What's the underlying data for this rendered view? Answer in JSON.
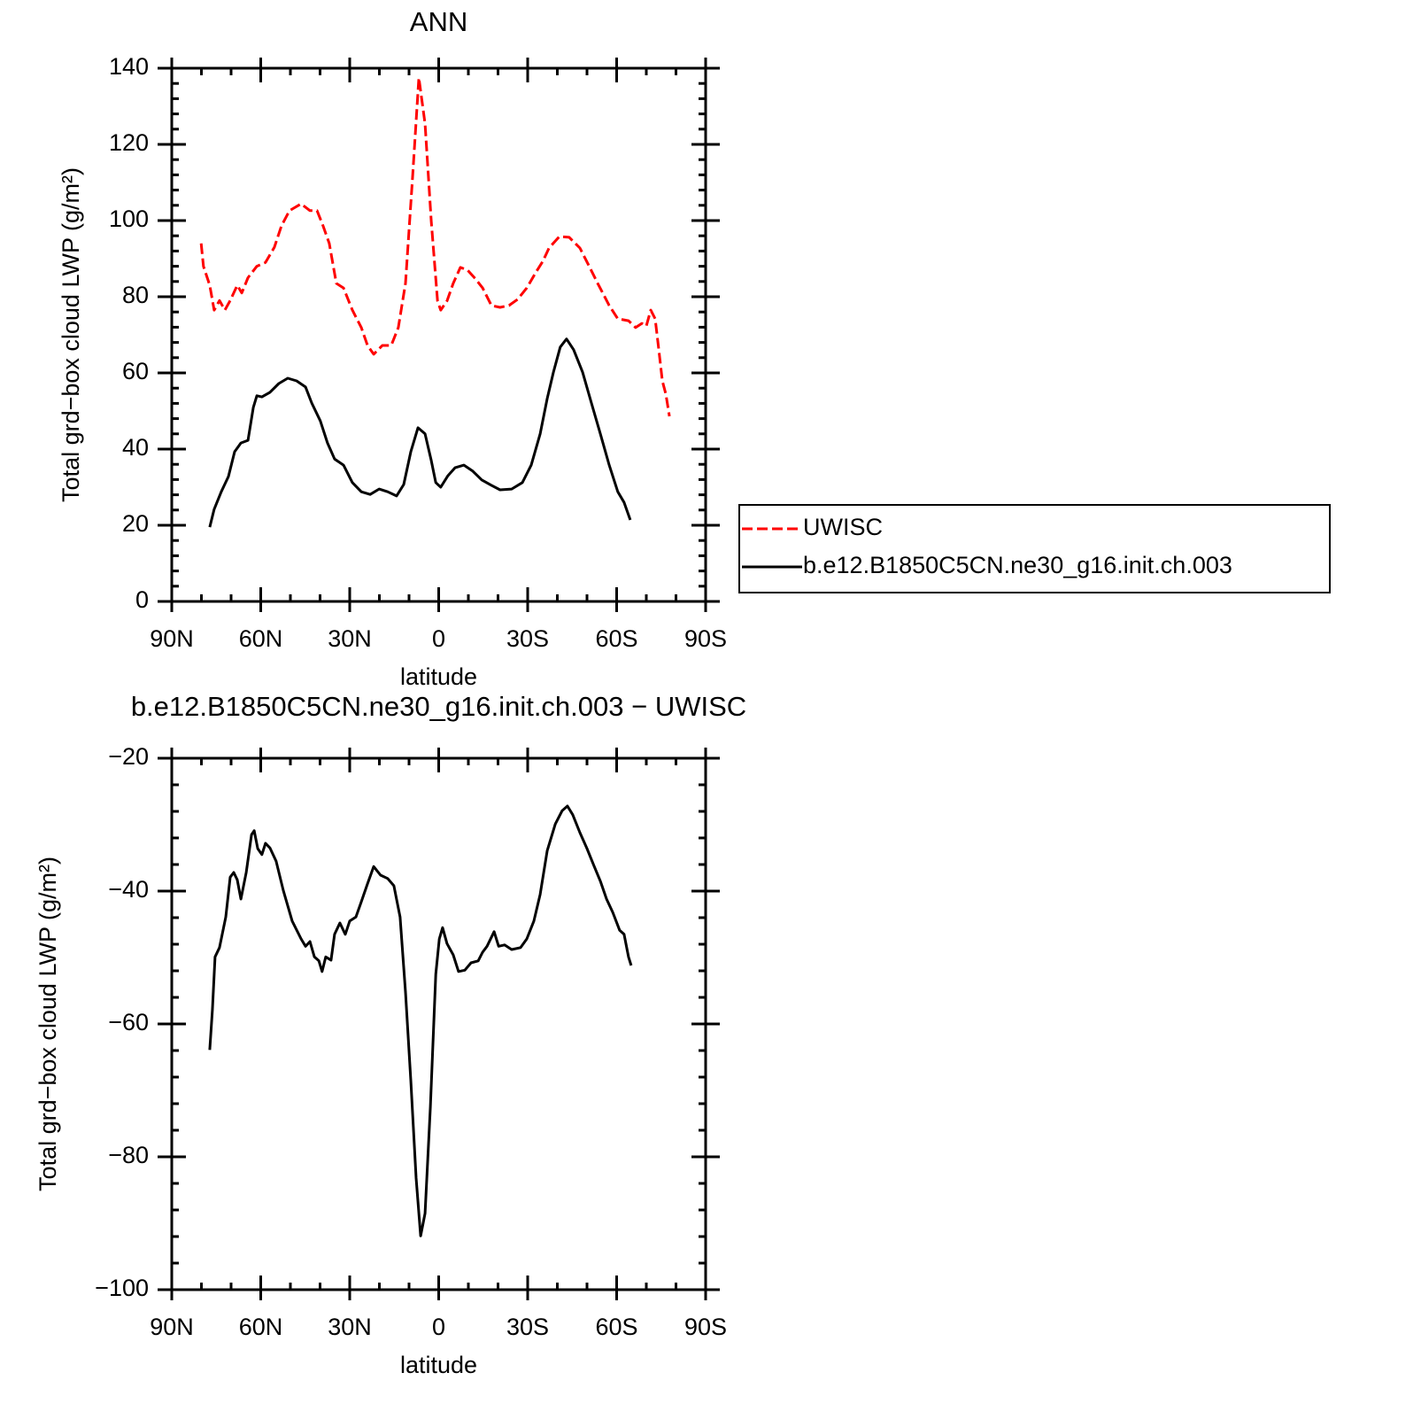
{
  "chart_data": [
    {
      "type": "line",
      "title": "ANN",
      "xlabel": "latitude",
      "ylabel": "Total grd−box cloud LWP (g/m²)",
      "xlim": [
        90,
        -90
      ],
      "ylim": [
        0,
        140
      ],
      "xticks": [
        {
          "value": 90,
          "label": "90N"
        },
        {
          "value": 60,
          "label": "60N"
        },
        {
          "value": 30,
          "label": "30N"
        },
        0,
        {
          "value": -30,
          "label": "30S"
        },
        {
          "value": -60,
          "label": "60S"
        },
        {
          "value": -90,
          "label": "90S"
        }
      ],
      "yticks": [
        0,
        20,
        40,
        60,
        80,
        100,
        120,
        140
      ],
      "legend": "right",
      "series": [
        {
          "name": "UWISC",
          "color": "#ff0000",
          "linestyle": "dashed",
          "x": [
            80.1,
            79.3,
            77.2,
            75.7,
            73.9,
            72.1,
            70.3,
            67.9,
            66.4,
            64.3,
            61.3,
            58.4,
            55.4,
            53,
            50.3,
            46.4,
            43.4,
            41,
            39,
            36.9,
            34.5,
            32.1,
            29.1,
            26.1,
            24,
            21.9,
            19,
            16,
            13.6,
            11.2,
            8.8,
            6.7,
            4.6,
            2.5,
            0.4,
            -0.7,
            -2.8,
            -4.9,
            -7.3,
            -9.7,
            -12.4,
            -14.8,
            -17.8,
            -20.7,
            -23.7,
            -26.6,
            -29.7,
            -32.7,
            -35.1,
            -37.2,
            -40.7,
            -44,
            -47.6,
            -50.6,
            -53.6,
            -57.5,
            -60.4,
            -64,
            -66.4,
            -68.5,
            -70,
            -71.5,
            -73,
            -74.2,
            -75.4,
            -76.6,
            -77.8
          ],
          "values": [
            94,
            88,
            83,
            76.5,
            79,
            76.5,
            79,
            83,
            81,
            85,
            88,
            89,
            93,
            98.6,
            102.6,
            104.4,
            102.6,
            102.6,
            98.6,
            94,
            83.5,
            82.3,
            76.5,
            71.9,
            67.2,
            64.9,
            67.2,
            67.2,
            71.9,
            83.5,
            111.4,
            137.5,
            125.4,
            99.8,
            78.9,
            76.5,
            78.9,
            83.5,
            87.7,
            87,
            84.7,
            82.3,
            77.7,
            77.2,
            77.7,
            79.3,
            82.3,
            86.3,
            89.3,
            92.8,
            95.8,
            95.6,
            92.8,
            88.2,
            83.5,
            77.7,
            74.2,
            73.7,
            71.9,
            73,
            72.3,
            76.5,
            74.2,
            66.1,
            57.9,
            54.4,
            48.6
          ]
        },
        {
          "name": "b.e12.B1850C5CN.ne30_g16.init.ch.003",
          "color": "#000000",
          "linestyle": "solid",
          "x": [
            77.2,
            75.7,
            73.3,
            70.9,
            68.8,
            66.7,
            64.3,
            62.5,
            61.3,
            59.6,
            56.9,
            53.9,
            50.9,
            47.9,
            44.9,
            42.8,
            39.9,
            37.5,
            35.1,
            32.1,
            29.1,
            26.1,
            23.1,
            20.1,
            17.2,
            14.2,
            11.8,
            9.4,
            7,
            4.6,
            2.5,
            1,
            -0.7,
            -3.1,
            -5.5,
            -8.5,
            -11.5,
            -14.5,
            -17.8,
            -20.7,
            -24.6,
            -28.2,
            -31.2,
            -34.2,
            -36.6,
            -38.7,
            -41,
            -43.1,
            -45.5,
            -48.5,
            -51.5,
            -54.5,
            -57.5,
            -60.4,
            -62.5,
            -64.6
          ],
          "values": [
            19.5,
            24.2,
            28.8,
            32.8,
            39.3,
            41.6,
            42.3,
            50.9,
            54,
            53.7,
            54.9,
            57.2,
            58.6,
            57.9,
            56.3,
            52.1,
            47.4,
            41.6,
            37.4,
            35.8,
            31.2,
            28.8,
            28.1,
            29.5,
            28.8,
            27.7,
            30.7,
            39.3,
            45.6,
            44,
            37,
            31.2,
            30,
            33,
            35.1,
            35.8,
            34.2,
            31.9,
            30.5,
            29.3,
            29.5,
            31.2,
            35.8,
            44,
            53.3,
            60.2,
            66.8,
            68.9,
            66.1,
            60.2,
            52.1,
            44,
            35.8,
            28.8,
            26,
            21.4
          ]
        }
      ]
    },
    {
      "type": "line",
      "title": "b.e12.B1850C5CN.ne30_g16.init.ch.003 − UWISC",
      "xlabel": "latitude",
      "ylabel": "Total grd−box cloud LWP (g/m²)",
      "xlim": [
        90,
        -90
      ],
      "ylim": [
        -100,
        -20
      ],
      "xticks": [
        {
          "value": 90,
          "label": "90N"
        },
        {
          "value": 60,
          "label": "60N"
        },
        {
          "value": 30,
          "label": "30N"
        },
        0,
        {
          "value": -30,
          "label": "30S"
        },
        {
          "value": -60,
          "label": "60S"
        },
        {
          "value": -90,
          "label": "90S"
        }
      ],
      "yticks": [
        {
          "value": -100,
          "label": "−100"
        },
        {
          "value": -80,
          "label": "−80"
        },
        {
          "value": -60,
          "label": "−60"
        },
        {
          "value": -40,
          "label": "−40"
        },
        {
          "value": -20,
          "label": "−20"
        }
      ],
      "series": [
        {
          "color": "#000000",
          "linestyle": "solid",
          "x": [
            77.2,
            76.3,
            75.4,
            73.9,
            71.8,
            70.3,
            69.1,
            67.9,
            66.7,
            64.9,
            63.1,
            62.2,
            61,
            59.6,
            58.4,
            56.9,
            54.8,
            52.4,
            49.4,
            46.4,
            44.9,
            43.4,
            41.9,
            40.4,
            39.3,
            38.1,
            36.3,
            35.1,
            33.3,
            31.5,
            30,
            27.9,
            26.1,
            24,
            21.9,
            19.6,
            17.2,
            15.1,
            13,
            11.2,
            9.4,
            7.6,
            6.1,
            4.6,
            2.8,
            1,
            -0.2,
            -1.3,
            -2.8,
            -4.9,
            -6.7,
            -8.8,
            -10.9,
            -13.3,
            -14.8,
            -16.3,
            -18.7,
            -20.2,
            -22.2,
            -24.6,
            -27.6,
            -29.7,
            -32.1,
            -34.2,
            -36.6,
            -39.3,
            -41.6,
            -43.4,
            -45.2,
            -47.6,
            -50,
            -52.1,
            -54.5,
            -56.6,
            -58.7,
            -61,
            -62.5,
            -64,
            -64.9
          ],
          "values": [
            -63.9,
            -57.9,
            -49.9,
            -48.5,
            -43.9,
            -37.9,
            -37.2,
            -38.3,
            -41.2,
            -37.2,
            -31.5,
            -30.9,
            -33.6,
            -34.5,
            -32.8,
            -33.5,
            -35.5,
            -39.9,
            -44.5,
            -47.2,
            -48.3,
            -47.6,
            -49.9,
            -50.5,
            -52.1,
            -49.9,
            -50.4,
            -46.5,
            -44.8,
            -46.5,
            -44.5,
            -43.9,
            -41.6,
            -38.9,
            -36.3,
            -37.6,
            -38.1,
            -39.2,
            -43.9,
            -55.2,
            -68.5,
            -83.2,
            -91.9,
            -88.5,
            -72.5,
            -52.5,
            -47.2,
            -45.5,
            -47.9,
            -49.6,
            -52.1,
            -51.9,
            -50.8,
            -50.5,
            -49.2,
            -48.3,
            -46.1,
            -48.3,
            -48.1,
            -48.8,
            -48.5,
            -47.2,
            -44.5,
            -40.5,
            -33.9,
            -29.9,
            -27.9,
            -27.2,
            -28.5,
            -31.2,
            -33.6,
            -35.9,
            -38.5,
            -41.2,
            -43.2,
            -45.9,
            -46.5,
            -49.9,
            -51.2
          ]
        }
      ]
    }
  ]
}
